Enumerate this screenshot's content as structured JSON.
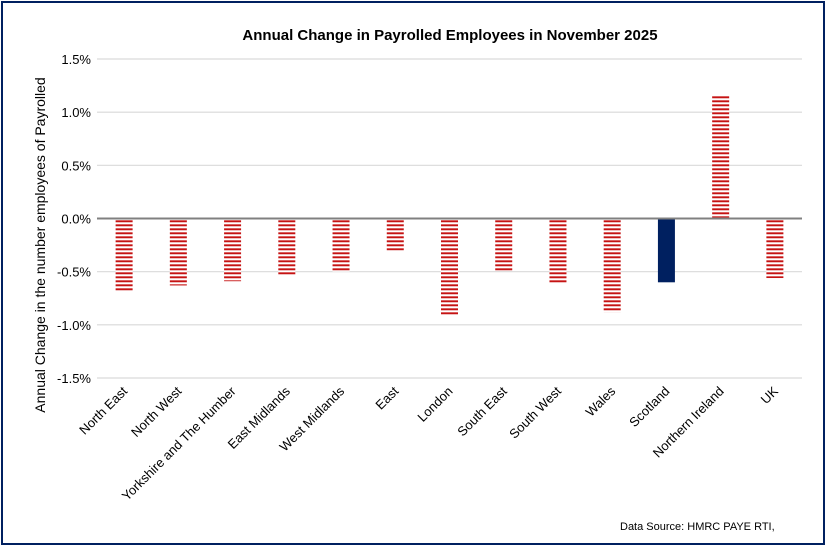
{
  "chart_data": {
    "type": "bar",
    "title": "Annual Change in Payrolled Employees in November 2025",
    "xlabel": "",
    "ylabel": "Annual Change in the number employees of Payrolled",
    "ylim": [
      -1.5,
      1.5
    ],
    "yticks": [
      1.5,
      1.0,
      0.5,
      0.0,
      -0.5,
      -1.0,
      -1.5
    ],
    "ytick_labels": [
      "1.5%",
      "1.0%",
      "0.5%",
      "0.0%",
      "-0.5%",
      "-1.0%",
      "-1.5%"
    ],
    "grid": true,
    "legend": "none",
    "categories": [
      "North East",
      "North West",
      "Yorkshire and The Humber",
      "East Midlands",
      "West Midlands",
      "East",
      "London",
      "South East",
      "South West",
      "Wales",
      "Scotland",
      "Northern Ireland",
      "UK"
    ],
    "values": [
      -0.68,
      -0.63,
      -0.59,
      -0.54,
      -0.5,
      -0.3,
      -0.91,
      -0.49,
      -0.61,
      -0.88,
      -0.6,
      1.16,
      -0.56
    ],
    "highlight": "Scotland",
    "colors": {
      "default": "#c00000",
      "highlight": "#002060"
    },
    "source": "Data Source: HMRC PAYE RTI,"
  }
}
